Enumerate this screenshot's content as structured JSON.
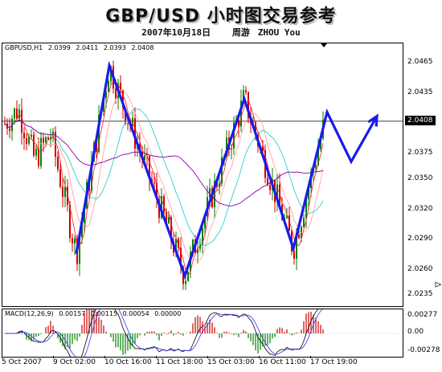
{
  "header": {
    "title": "GBP/USD 小时图交易参考",
    "date": "2007年10月18日",
    "author_label": "周游",
    "author_name": "ZHOU You"
  },
  "main_panel": {
    "symbol": "GBPUSD,H1",
    "ohlc": [
      "2.0399",
      "2.0411",
      "2.0393",
      "2.0408"
    ],
    "current_price": "2.0408",
    "price_labels": [
      "2.0465",
      "2.0435",
      "2.0408",
      "2.0375",
      "2.0350",
      "2.0320",
      "2.0290",
      "2.0260",
      "2.0235"
    ]
  },
  "macd_panel": {
    "label": "MACD(12,26,9)",
    "values": [
      "0.00157",
      "0.00115",
      "0.00054",
      "0.00000"
    ],
    "axis_labels": [
      "0.00277",
      "0.00",
      "-0.00278"
    ]
  },
  "time_axis": [
    "5 Oct 2007",
    "9 Oct 02:00",
    "10 Oct 16:00",
    "11 Oct 18:00",
    "15 Oct 03:00",
    "16 Oct 11:00",
    "17 Oct 19:00"
  ],
  "colors": {
    "bull": "#008000",
    "bear": "#cc0000",
    "ma_fast": "#ff2020",
    "ma_mid": "#ff9999",
    "ma_cyan": "#33cccc",
    "ma_purple": "#8800aa",
    "wave": "#1a1aee",
    "macd_line": "#000000",
    "signal_line": "#3333ff"
  },
  "chart_data": {
    "type": "line",
    "title": "GBP/USD 小时图交易参考",
    "ylim": [
      2.0225,
      2.0485
    ],
    "wave_pivots": {
      "x": [
        "9 Oct 02:00",
        "10 Oct 02:00",
        "11 Oct 18:00",
        "15 Oct 03:00",
        "16 Oct 11:00",
        "17 Oct 12:00",
        "18 Oct 02:00",
        "18 Oct 14:00"
      ],
      "y": [
        2.0277,
        2.0463,
        2.0255,
        2.043,
        2.0282,
        2.0417,
        2.0368,
        2.0413
      ]
    },
    "current_price": 2.0408
  }
}
